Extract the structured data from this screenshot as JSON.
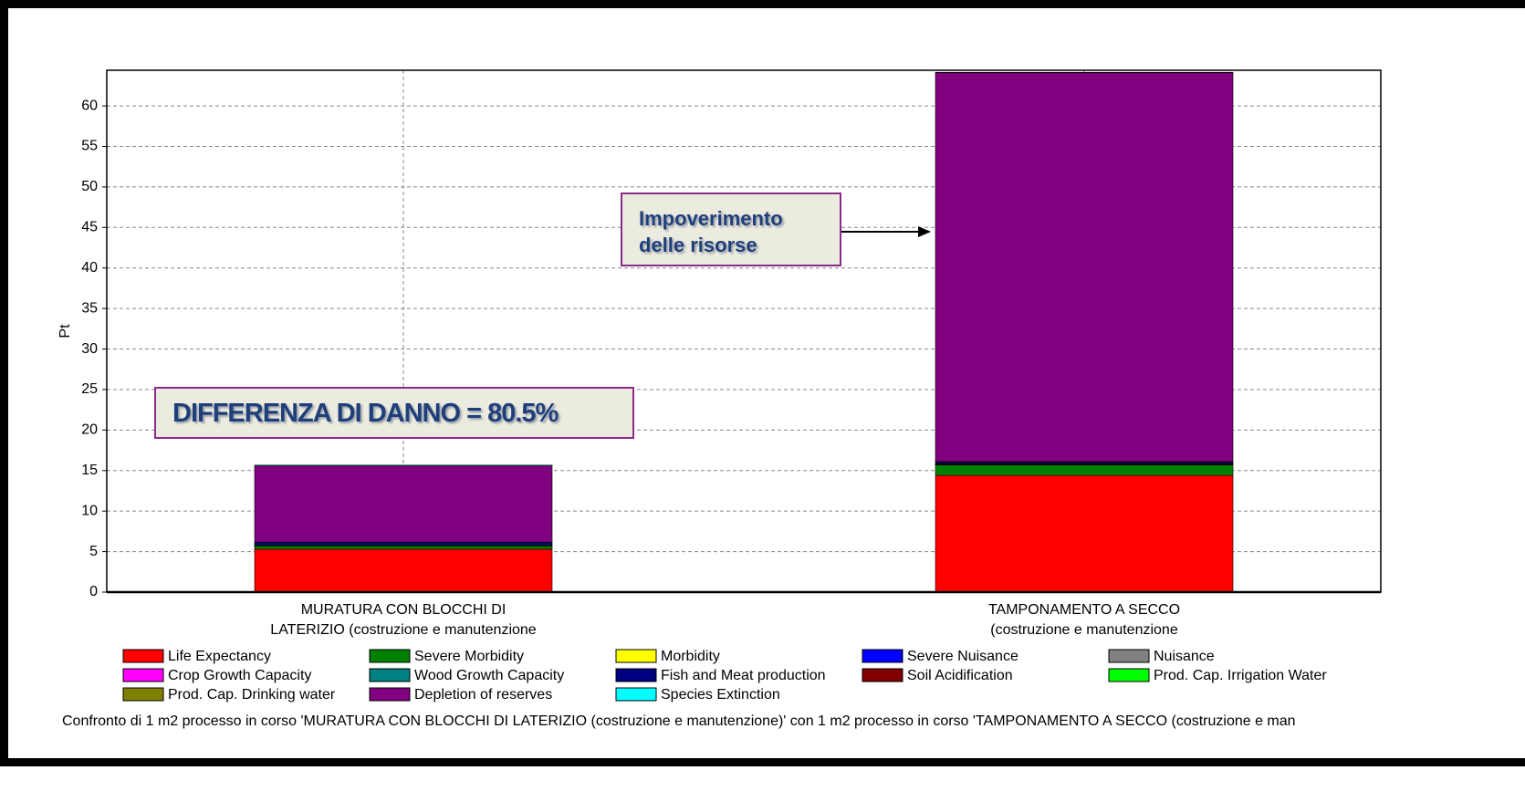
{
  "chart_data": {
    "type": "stacked_bar",
    "y_label": "Pt",
    "categories": [
      "MURATURA CON BLOCCHI DI\nLATERIZIO (costruzione e manutenzione",
      "TAMPONAMENTO A SECCO\n(costruzione e manutenzione"
    ],
    "series": [
      {
        "name": "Life Expectancy",
        "color": "#ff0000",
        "values": [
          5.3,
          14.4
        ]
      },
      {
        "name": "Severe Morbidity",
        "color": "#008000",
        "values": [
          0.4,
          1.3
        ]
      },
      {
        "name": "Morbidity",
        "color": "#ffff00",
        "values": [
          0.02,
          0.05
        ]
      },
      {
        "name": "Severe Nuisance",
        "color": "#0000ff",
        "values": [
          0,
          0
        ]
      },
      {
        "name": "Nuisance",
        "color": "#808080",
        "values": [
          0,
          0
        ]
      },
      {
        "name": "Crop Growth Capacity",
        "color": "#ff00ff",
        "values": [
          0,
          0
        ]
      },
      {
        "name": "Wood Growth Capacity",
        "color": "#008080",
        "values": [
          0.1,
          0.05
        ]
      },
      {
        "name": "Fish and Meat production",
        "color": "#000080",
        "values": [
          0.3,
          0.2
        ]
      },
      {
        "name": "Soil Acidification",
        "color": "#800000",
        "values": [
          0.05,
          0.1
        ]
      },
      {
        "name": "Prod. Cap. Irrigation Water",
        "color": "#00ff00",
        "values": [
          0,
          0
        ]
      },
      {
        "name": "Prod. Cap. Drinking water",
        "color": "#808000",
        "values": [
          0,
          0
        ]
      },
      {
        "name": "Depletion of reserves",
        "color": "#800080",
        "values": [
          9.4,
          48
        ]
      },
      {
        "name": "Species Extinction",
        "color": "#00ffff",
        "values": [
          0.1,
          0.05
        ]
      }
    ],
    "ylim": [
      0,
      64.4
    ],
    "yticks": [
      0,
      5,
      10,
      15,
      20,
      25,
      30,
      35,
      40,
      45,
      50,
      55,
      60
    ],
    "grid": true,
    "annotations": [
      "Impoverimento\ndelle risorse",
      "DIFFERENZA DI DANNO = 80.5%"
    ],
    "footer": "Confronto di 1 m2 processo in corso 'MURATURA CON BLOCCHI DI LATERIZIO (costruzione e manutenzione)' con 1 m2 processo in corso 'TAMPONAMENTO A SECCO (costruzione e man"
  }
}
